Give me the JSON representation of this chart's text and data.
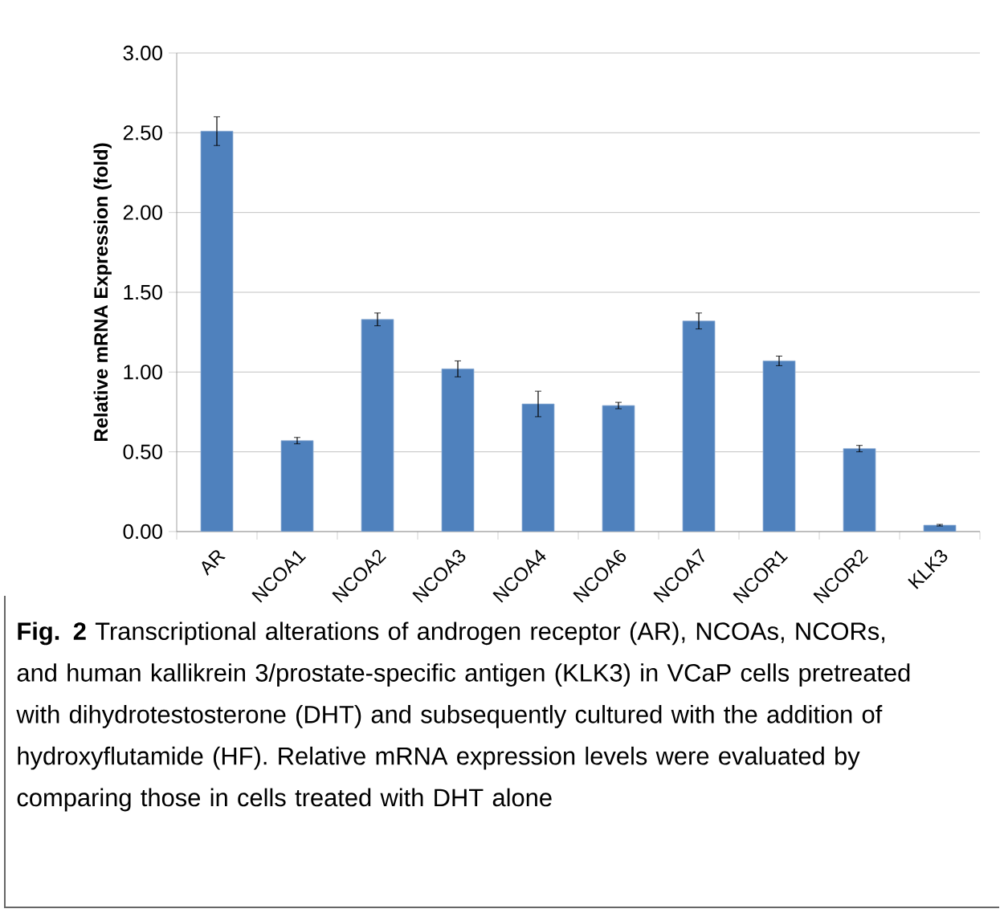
{
  "chart_data": {
    "type": "bar",
    "ylabel": "Relative mRNA Expression (fold)",
    "categories": [
      "AR",
      "NCOA1",
      "NCOA2",
      "NCOA3",
      "NCOA4",
      "NCOA6",
      "NCOA7",
      "NCOR1",
      "NCOR2",
      "KLK3"
    ],
    "values": [
      2.51,
      0.57,
      1.33,
      1.02,
      0.8,
      0.79,
      1.32,
      1.07,
      0.52,
      0.04
    ],
    "errors": [
      0.09,
      0.02,
      0.04,
      0.05,
      0.08,
      0.02,
      0.05,
      0.03,
      0.02,
      0.005
    ],
    "color": "#4f81bd",
    "ylim": [
      0,
      3
    ],
    "yticks": [
      {
        "value": 0,
        "label": "0.00"
      },
      {
        "value": 0.5,
        "label": "0.50"
      },
      {
        "value": 1,
        "label": "1.00"
      },
      {
        "value": 1.5,
        "label": "1.50"
      },
      {
        "value": 2,
        "label": "2.00"
      },
      {
        "value": 2.5,
        "label": "2.50"
      },
      {
        "value": 3,
        "label": "3.00"
      }
    ],
    "grid": "y",
    "annotations": [
      "**Fig. 2** Transcriptional alterations of androgen receptor (AR), NCOAs, NCORs, and human kallikrein 3/prostate-specific antigen (KLK3) in VCaP cells pretreated with dihydrotestosterone (DHT) and subsequently cultured with the addition of hydroxyflutamide (HF). Relative mRNA expression levels were evaluated by comparing those in cells treated with DHT alone"
    ]
  }
}
